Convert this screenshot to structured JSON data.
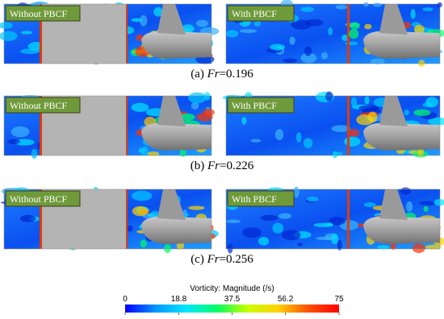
{
  "rows": [
    {
      "caption": {
        "prefix": "(a) ",
        "symbol": "Fr",
        "value": "=0.196"
      },
      "left_label": "Without PBCF",
      "right_label": "With PBCF"
    },
    {
      "caption": {
        "prefix": "(b) ",
        "symbol": "Fr",
        "value": "=0.226"
      },
      "left_label": "Without PBCF",
      "right_label": "With PBCF"
    },
    {
      "caption": {
        "prefix": "(c) ",
        "symbol": "Fr",
        "value": "=0.256"
      },
      "left_label": "Without PBCF",
      "right_label": "With PBCF"
    }
  ],
  "colorbar": {
    "title": "Vorticity: Magnitude (/s)",
    "range": [
      0,
      75
    ],
    "ticks": [
      0,
      18.8,
      37.5,
      56.2,
      75
    ],
    "colors": [
      "#0000ff",
      "#0096ff",
      "#00e6ff",
      "#00ff64",
      "#c8ff00",
      "#ffd200",
      "#ff5000",
      "#ff0000"
    ]
  }
}
